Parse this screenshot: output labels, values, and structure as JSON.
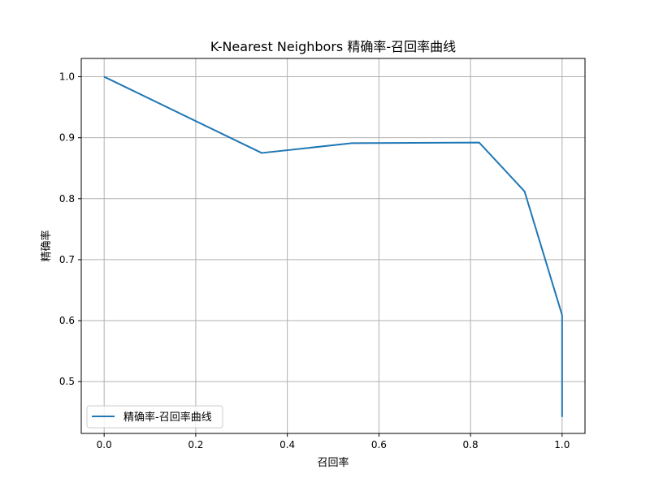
{
  "chart_data": {
    "type": "line",
    "title": "K-Nearest Neighbors 精确率-召回率曲线",
    "xlabel": "召回率",
    "ylabel": "精确率",
    "xlim": [
      -0.05,
      1.05
    ],
    "ylim": [
      0.415,
      1.03
    ],
    "xticks": [
      0.0,
      0.2,
      0.4,
      0.6,
      0.8,
      1.0
    ],
    "xtick_labels": [
      "0.0",
      "0.2",
      "0.4",
      "0.6",
      "0.8",
      "1.0"
    ],
    "yticks": [
      0.5,
      0.6,
      0.7,
      0.8,
      0.9,
      1.0
    ],
    "ytick_labels": [
      "0.5",
      "0.6",
      "0.7",
      "0.8",
      "0.9",
      "1.0"
    ],
    "grid": true,
    "legend_position": "lower-left",
    "series": [
      {
        "name": "精确率-召回率曲线",
        "color": "#1f77b4",
        "x": [
          0.0,
          0.344,
          0.541,
          0.819,
          0.918,
          1.0,
          1.0
        ],
        "y": [
          1.0,
          0.875,
          0.891,
          0.892,
          0.812,
          0.609,
          0.442
        ]
      }
    ]
  }
}
